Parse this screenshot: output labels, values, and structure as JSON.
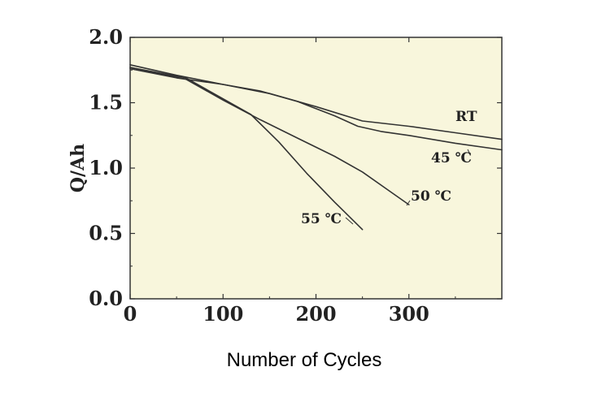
{
  "chart_data": {
    "type": "line",
    "title": "",
    "xlabel": "Number of Cycles",
    "ylabel": "Q/Ah",
    "xlim": [
      0,
      400
    ],
    "ylim": [
      0.0,
      2.0
    ],
    "x_ticks": [
      0,
      100,
      200,
      300
    ],
    "x_tick_labels": [
      "0",
      "100",
      "200",
      "300"
    ],
    "y_ticks": [
      0.0,
      0.5,
      1.0,
      1.5,
      2.0
    ],
    "y_tick_labels": [
      "0.0",
      "0.5",
      "1.0",
      "1.5",
      "2.0"
    ],
    "grid": false,
    "background": "#f8f6dc",
    "line_color": "#333333",
    "series": [
      {
        "name": "RT",
        "label": "RT",
        "x": [
          0,
          50,
          100,
          150,
          200,
          250,
          300,
          350,
          400
        ],
        "y": [
          1.79,
          1.71,
          1.64,
          1.57,
          1.47,
          1.36,
          1.32,
          1.27,
          1.22
        ]
      },
      {
        "name": "45 ℃",
        "label": "45 ℃",
        "x": [
          0,
          50,
          100,
          140,
          180,
          220,
          245,
          270,
          300,
          350,
          400
        ],
        "y": [
          1.76,
          1.69,
          1.64,
          1.59,
          1.51,
          1.4,
          1.32,
          1.28,
          1.25,
          1.19,
          1.14
        ]
      },
      {
        "name": "50 ℃",
        "label": "50 ℃",
        "x": [
          0,
          60,
          100,
          140,
          180,
          220,
          250,
          280,
          300
        ],
        "y": [
          1.77,
          1.68,
          1.52,
          1.37,
          1.23,
          1.09,
          0.97,
          0.82,
          0.72
        ]
      },
      {
        "name": "55 ℃",
        "label": "55 ℃",
        "x": [
          0,
          60,
          100,
          130,
          160,
          190,
          220,
          250
        ],
        "y": [
          1.77,
          1.69,
          1.53,
          1.41,
          1.2,
          0.96,
          0.74,
          0.53
        ]
      }
    ]
  }
}
